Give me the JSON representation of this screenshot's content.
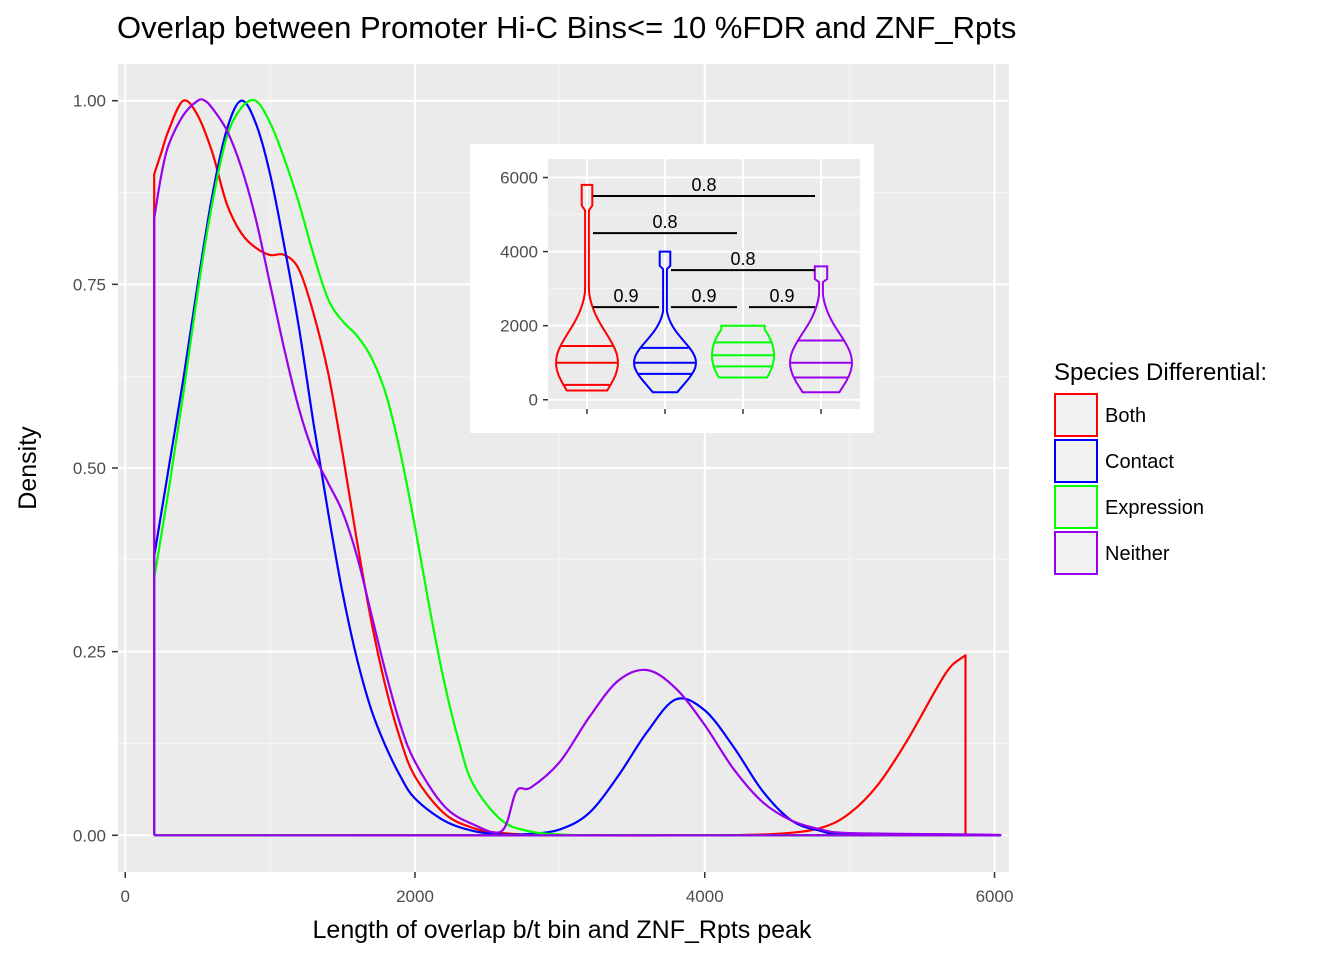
{
  "chart_data": {
    "type": "line",
    "title": "Overlap between Promoter Hi-C Bins<= 10 %FDR and ZNF_Rpts",
    "xlabel": "Length of overlap b/t bin and ZNF_Rpts peak",
    "ylabel": "Density",
    "xlim": [
      -50,
      6100
    ],
    "ylim": [
      -0.05,
      1.05
    ],
    "x_ticks": [
      0,
      2000,
      4000,
      6000
    ],
    "x_tick_labels": [
      "0",
      "2000",
      "4000",
      "6000"
    ],
    "y_ticks": [
      0,
      0.25,
      0.5,
      0.75,
      1.0
    ],
    "y_tick_labels": [
      "0.00",
      "0.25",
      "0.50",
      "0.75",
      "1.00"
    ],
    "grid": true,
    "legend": {
      "title": "Species Differential:",
      "position": "right",
      "entries": [
        {
          "label": "Both",
          "color": "#ff0000"
        },
        {
          "label": "Contact",
          "color": "#0000ff"
        },
        {
          "label": "Expression",
          "color": "#00ff00"
        },
        {
          "label": "Neither",
          "color": "#9900ee"
        }
      ]
    },
    "series": [
      {
        "name": "Both",
        "color": "#ff0000",
        "x": [
          200,
          200,
          250,
          300,
          400,
          500,
          600,
          700,
          800,
          900,
          1000,
          1100,
          1200,
          1300,
          1400,
          1500,
          1600,
          1700,
          1800,
          1900,
          2000,
          2200,
          2400,
          2600,
          3000,
          4000,
          4500,
          4800,
          5000,
          5200,
          5400,
          5600,
          5700,
          5800,
          5800,
          200
        ],
        "y": [
          0.0,
          0.9,
          0.93,
          0.96,
          1.0,
          0.98,
          0.93,
          0.86,
          0.82,
          0.8,
          0.79,
          0.79,
          0.77,
          0.71,
          0.63,
          0.52,
          0.4,
          0.29,
          0.2,
          0.13,
          0.08,
          0.03,
          0.01,
          0.003,
          0.0,
          0.0,
          0.002,
          0.01,
          0.03,
          0.07,
          0.13,
          0.2,
          0.23,
          0.245,
          0.0,
          0.0
        ]
      },
      {
        "name": "Contact",
        "color": "#0000ff",
        "x": [
          200,
          200,
          300,
          400,
          500,
          600,
          700,
          800,
          900,
          1000,
          1100,
          1200,
          1300,
          1400,
          1500,
          1600,
          1700,
          1800,
          1900,
          2000,
          2200,
          2400,
          2600,
          2800,
          3000,
          3200,
          3400,
          3600,
          3800,
          4000,
          4200,
          4400,
          4600,
          4800,
          5000,
          5800,
          200
        ],
        "y": [
          0.0,
          0.38,
          0.5,
          0.62,
          0.75,
          0.87,
          0.96,
          1.0,
          0.97,
          0.9,
          0.8,
          0.69,
          0.56,
          0.44,
          0.33,
          0.24,
          0.17,
          0.12,
          0.08,
          0.05,
          0.02,
          0.006,
          0.001,
          0.002,
          0.008,
          0.03,
          0.08,
          0.14,
          0.185,
          0.17,
          0.12,
          0.06,
          0.02,
          0.006,
          0.001,
          0.0,
          0.0
        ]
      },
      {
        "name": "Expression",
        "color": "#00ff00",
        "x": [
          200,
          200,
          300,
          400,
          500,
          600,
          700,
          800,
          900,
          1000,
          1100,
          1200,
          1300,
          1400,
          1500,
          1600,
          1700,
          1800,
          1900,
          2000,
          2100,
          2200,
          2300,
          2400,
          2600,
          2800,
          3000,
          3200,
          3400,
          5800,
          200
        ],
        "y": [
          0.0,
          0.35,
          0.47,
          0.6,
          0.74,
          0.86,
          0.95,
          0.99,
          1.0,
          0.97,
          0.92,
          0.86,
          0.79,
          0.73,
          0.7,
          0.68,
          0.65,
          0.6,
          0.52,
          0.42,
          0.31,
          0.21,
          0.13,
          0.07,
          0.02,
          0.005,
          0.001,
          0.0,
          0.0,
          0.0,
          0.0
        ]
      },
      {
        "name": "Neither",
        "color": "#9900ee",
        "x": [
          200,
          200,
          250,
          300,
          400,
          500,
          550,
          600,
          700,
          800,
          900,
          1000,
          1100,
          1200,
          1300,
          1400,
          1500,
          1600,
          1700,
          1800,
          1900,
          2000,
          2200,
          2400,
          2600,
          2700,
          2800,
          3000,
          3200,
          3400,
          3600,
          3800,
          4000,
          4200,
          4400,
          4600,
          4800,
          5000,
          5800,
          200
        ],
        "y": [
          0.0,
          0.84,
          0.9,
          0.94,
          0.98,
          1.0,
          1.0,
          0.99,
          0.96,
          0.91,
          0.84,
          0.75,
          0.66,
          0.58,
          0.52,
          0.48,
          0.44,
          0.38,
          0.3,
          0.22,
          0.15,
          0.1,
          0.04,
          0.015,
          0.006,
          0.06,
          0.065,
          0.1,
          0.16,
          0.21,
          0.225,
          0.2,
          0.15,
          0.09,
          0.045,
          0.02,
          0.008,
          0.003,
          0.0,
          0.0
        ]
      }
    ],
    "inset": {
      "type": "violin",
      "ylim": [
        -250,
        6500
      ],
      "y_ticks": [
        0,
        2000,
        4000,
        6000
      ],
      "y_tick_labels": [
        "0",
        "2000",
        "4000",
        "6000"
      ],
      "violins": [
        {
          "group": "Both",
          "color": "#ff0000",
          "min": 250,
          "max": 5800,
          "quantiles": [
            400,
            1000,
            1450
          ]
        },
        {
          "group": "Contact",
          "color": "#0000ff",
          "min": 200,
          "max": 4000,
          "quantiles": [
            700,
            1000,
            1400
          ]
        },
        {
          "group": "Expression",
          "color": "#00ff00",
          "min": 600,
          "max": 2000,
          "quantiles": [
            900,
            1200,
            1550
          ]
        },
        {
          "group": "Neither",
          "color": "#9900ee",
          "min": 200,
          "max": 3600,
          "quantiles": [
            600,
            1000,
            1600
          ]
        }
      ],
      "comparisons": [
        {
          "from": 0,
          "to": 3,
          "y": 5500,
          "label": "0.8"
        },
        {
          "from": 0,
          "to": 2,
          "y": 4500,
          "label": "0.8"
        },
        {
          "from": 1,
          "to": 3,
          "y": 3500,
          "label": "0.8"
        },
        {
          "from": 0,
          "to": 1,
          "y": 2500,
          "label": "0.9"
        },
        {
          "from": 1,
          "to": 2,
          "y": 2500,
          "label": "0.9"
        },
        {
          "from": 2,
          "to": 3,
          "y": 2500,
          "label": "0.9"
        }
      ]
    }
  }
}
